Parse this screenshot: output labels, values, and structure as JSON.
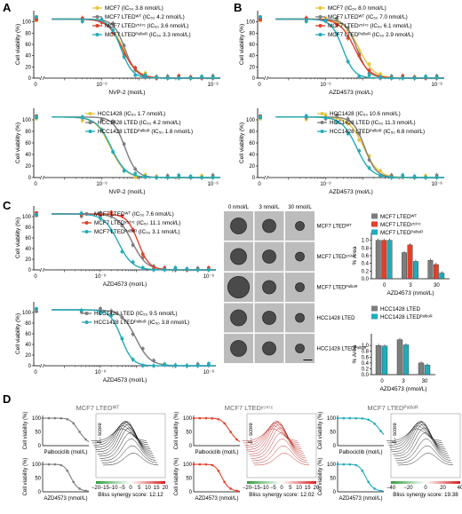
{
  "panel_letters": [
    "A",
    "B",
    "C",
    "D"
  ],
  "colors": {
    "yellow": "#e8c43a",
    "gray": "#7d7d7d",
    "red": "#e2402a",
    "cyan": "#23aab8",
    "dark_gray": "#555555"
  },
  "labels": {
    "cell_viability": "Cell viability (%)",
    "nvp2": "NVP-2 (mol/L)",
    "azd_mol": "AZD4573 (mol/L)",
    "azd_nmol": "AZD4573 (nmol/L)",
    "pct_area": "% Area",
    "palbo_mol": "Palbociclib (mol/L)",
    "delta_score": "δ - score",
    "palbo_short": "Palbociclib (mol/L)",
    "azd_short": "AZD4573 (nmol/L)",
    "x0": "0",
    "x1e9": "10⁻⁹",
    "x1e6": "10⁻⁶",
    "y_ticks": [
      "0",
      "20",
      "40",
      "60",
      "80",
      "100"
    ],
    "bar_y_ticks": [
      "0.0",
      "0.2",
      "0.4",
      "0.6",
      "0.8",
      "1.0"
    ],
    "bar_x_ticks": [
      "0",
      "3",
      "30"
    ],
    "img_cols": [
      "0 nmol/L",
      "3 nmol/L",
      "30 nmol/L"
    ],
    "img_rows": [
      "MCF7 LTEDᵂᵀ",
      "MCF7 LTEDʸ⁵³⁷ᶜ",
      "MCF7 LTEDᴾᵃˡᵇᵒᴿ",
      "HCC1428 LTED",
      "HCC1428 LTEDᴾᵃˡᵇᵒᴿ"
    ]
  },
  "legends": {
    "A_top": [
      "MCF7 (IC₅₀ 3.8 nmol/L)",
      "MCF7 LTEDᵂᵀ (IC₅₀ 4.2 nmol/L)",
      "MCF7 LTEDʸ⁵³⁷ᶜ (IC₅₀ 3.6 nmol/L)",
      "MCF7 LTEDᴾᵃˡᵇᵒᴿ (IC₅₀ 3.3 nmol/L)"
    ],
    "B_top": [
      "MCF7 (IC₅₀ 8.0 nmol/L)",
      "MCF7 LTEDᵂᵀ (IC₅₀ 7.0 nmol/L)",
      "MCF7 LTEDʸ⁵³⁷ᶜ (IC₅₀ 6.1 nmol/L)",
      "MCF7 LTEDᴾᵃˡᵇᵒᴿ (IC₅₀ 2.9 nmol/L)"
    ],
    "A_bot": [
      "HCC1428 (IC₅₀ 1.7 nmol/L)",
      "HCC1428 LTED (IC₅₀ 4.2 nmol/L)",
      "HCC1428 LTEDᴾᵃˡᵇᵒᴿ (IC₅₀ 1.8 nmol/L)"
    ],
    "B_bot": [
      "HCC1428 (IC₅₀ 10.6 nmol/L)",
      "HCC1428 LTED (IC₅₀ 11.3 nmol/L)",
      "HCC1428 LTEDᴾᵃˡᵇᵒᴿ (IC₅₀ 6.8 nmol/L)"
    ],
    "C_top": [
      "MCF7 LTEDᵂᵀ (IC₅₀ 7.6 nmol/L)",
      "MCF7 LTEDʸ⁵³⁷ᶜ (IC₅₀ 11.1 nmol/L)",
      "MCF7 LTEDᴾᵃˡᵇᵒᴿ (IC₅₀ 3.1 nmol/L)"
    ],
    "C_bot": [
      "HCC1428 LTED (IC₅₀ 9.5 nmol/L)",
      "HCC1428 LTEDᴾᵃˡᵇᵒᴿ (IC₅₀ 3.8 nmol/L)"
    ],
    "C_bar_top": [
      "MCF7 LTEDᵂᵀ",
      "MCF7 LTEDʸ⁵³⁷ᶜ",
      "MCF7 LTEDᴾᵃˡᵇᵒᴿ"
    ],
    "C_bar_bot": [
      "HCC1428 LTED",
      "HCC1428 LTEDᴾᵃˡᵇᵒᴿ"
    ]
  },
  "D": {
    "titles": [
      "MCF7 LTEDᵂᵀ",
      "MCF7 LTEDʸ⁵³⁷ᶜ",
      "MCF7 LTEDᴾᵃˡᵇᵒᴿ"
    ],
    "bliss": [
      "Bliss synergy score: 12.12",
      "Bliss synergy score: 12.02",
      "Bliss synergy score: 19.38"
    ],
    "colorbar_ticks": [
      [
        "−20",
        "−15",
        "−10",
        "−5",
        "0",
        "5",
        "10",
        "15",
        "20"
      ],
      [
        "−20",
        "−15",
        "−10",
        "−5",
        "0",
        "5",
        "10",
        "15",
        "20"
      ],
      [
        "−40",
        "−20",
        "0",
        "20",
        "40"
      ]
    ]
  },
  "chart_data": [
    {
      "type": "line",
      "id": "A_top",
      "xlabel": "NVP-2 (mol/L)",
      "ylabel": "Cell viability (%)",
      "ylim": [
        0,
        120
      ],
      "x": [
        0,
        1e-10,
        3e-10,
        1e-09,
        3e-09,
        1e-08,
        3e-08,
        1e-07,
        3e-07,
        1e-06
      ],
      "series": [
        {
          "name": "MCF7",
          "color": "#e8c43a",
          "ic50": 3.8
        },
        {
          "name": "MCF7 LTED WT",
          "color": "#7d7d7d",
          "ic50": 4.2
        },
        {
          "name": "MCF7 LTED Y537C",
          "color": "#e2402a",
          "ic50": 3.6
        },
        {
          "name": "MCF7 LTED PalboR",
          "color": "#23aab8",
          "ic50": 3.3
        }
      ]
    },
    {
      "type": "line",
      "id": "A_bot",
      "xlabel": "NVP-2 (mol/L)",
      "ylabel": "Cell viability (%)",
      "ylim": [
        0,
        120
      ],
      "series": [
        {
          "name": "HCC1428",
          "color": "#e8c43a",
          "ic50": 1.7
        },
        {
          "name": "HCC1428 LTED",
          "color": "#7d7d7d",
          "ic50": 4.2
        },
        {
          "name": "HCC1428 LTED PalboR",
          "color": "#23aab8",
          "ic50": 1.8
        }
      ]
    },
    {
      "type": "line",
      "id": "B_top",
      "xlabel": "AZD4573 (mol/L)",
      "ylabel": "Cell viability (%)",
      "ylim": [
        0,
        120
      ],
      "series": [
        {
          "name": "MCF7",
          "color": "#e8c43a",
          "ic50": 8.0
        },
        {
          "name": "MCF7 LTED WT",
          "color": "#7d7d7d",
          "ic50": 7.0
        },
        {
          "name": "MCF7 LTED Y537C",
          "color": "#e2402a",
          "ic50": 6.1
        },
        {
          "name": "MCF7 LTED PalboR",
          "color": "#23aab8",
          "ic50": 2.9
        }
      ]
    },
    {
      "type": "line",
      "id": "B_bot",
      "xlabel": "AZD4573 (mol/L)",
      "ylabel": "Cell viability (%)",
      "ylim": [
        0,
        120
      ],
      "series": [
        {
          "name": "HCC1428",
          "color": "#e8c43a",
          "ic50": 10.6
        },
        {
          "name": "HCC1428 LTED",
          "color": "#7d7d7d",
          "ic50": 11.3
        },
        {
          "name": "HCC1428 LTED PalboR",
          "color": "#23aab8",
          "ic50": 6.8
        }
      ]
    },
    {
      "type": "line",
      "id": "C_top",
      "xlabel": "AZD4573 (mol/L)",
      "ylabel": "Cell viability (%)",
      "ylim": [
        0,
        120
      ],
      "series": [
        {
          "name": "MCF7 LTED WT",
          "color": "#7d7d7d",
          "ic50": 7.6
        },
        {
          "name": "MCF7 LTED Y537C",
          "color": "#e2402a",
          "ic50": 11.1
        },
        {
          "name": "MCF7 LTED PalboR",
          "color": "#23aab8",
          "ic50": 3.1
        }
      ]
    },
    {
      "type": "line",
      "id": "C_bot",
      "xlabel": "AZD4573 (mol/L)",
      "ylabel": "Cell viability (%)",
      "ylim": [
        0,
        120
      ],
      "series": [
        {
          "name": "HCC1428 LTED",
          "color": "#7d7d7d",
          "ic50": 9.5
        },
        {
          "name": "HCC1428 LTED PalboR",
          "color": "#23aab8",
          "ic50": 3.8
        }
      ]
    },
    {
      "type": "bar",
      "id": "C_bar_top",
      "xlabel": "AZD4573 (nmol/L)",
      "ylabel": "% Area",
      "ylim": [
        0,
        1.2
      ],
      "categories": [
        "0",
        "3",
        "30"
      ],
      "series": [
        {
          "name": "MCF7 LTED WT",
          "color": "#7d7d7d",
          "values": [
            1.0,
            0.68,
            0.48
          ]
        },
        {
          "name": "MCF7 LTED Y537C",
          "color": "#e2402a",
          "values": [
            1.0,
            0.88,
            0.37
          ]
        },
        {
          "name": "MCF7 LTED PalboR",
          "color": "#23aab8",
          "values": [
            1.0,
            0.45,
            0.15
          ]
        }
      ]
    },
    {
      "type": "bar",
      "id": "C_bar_bot",
      "xlabel": "AZD4573 (nmol/L)",
      "ylabel": "% Area",
      "ylim": [
        0,
        1.4
      ],
      "categories": [
        "0",
        "3",
        "30"
      ],
      "series": [
        {
          "name": "HCC1428 LTED",
          "color": "#7d7d7d",
          "values": [
            1.0,
            1.2,
            0.4
          ]
        },
        {
          "name": "HCC1428 LTED PalboR",
          "color": "#23aab8",
          "values": [
            0.98,
            1.02,
            0.33
          ]
        }
      ]
    }
  ]
}
